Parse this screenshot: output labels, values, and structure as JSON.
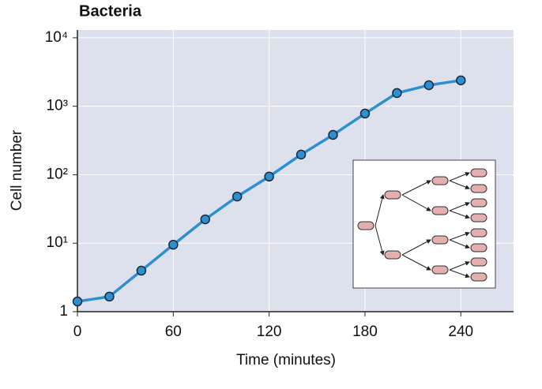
{
  "chart_data": {
    "type": "line",
    "title": "Bacteria",
    "xlabel": "Time (minutes)",
    "ylabel": "Cell number",
    "x": [
      0,
      20,
      40,
      60,
      80,
      100,
      120,
      140,
      160,
      180,
      200,
      220,
      240
    ],
    "values": [
      1.41,
      1.66,
      3.97,
      9.5,
      22.3,
      48,
      94,
      197,
      382,
      782,
      1560,
      2030,
      2390
    ],
    "color": "#2e8fd0",
    "xlim": [
      0,
      273
    ],
    "xticks": [
      0,
      60,
      120,
      180,
      240
    ],
    "ylim": [
      1,
      13000
    ],
    "log_y": true,
    "yticks": [
      1,
      {
        "value": 10,
        "label": "10¹"
      },
      {
        "value": 100,
        "label": "10²"
      },
      {
        "value": 1000,
        "label": "10³"
      },
      {
        "value": 10000,
        "label": "10⁴"
      }
    ],
    "grid": true
  }
}
